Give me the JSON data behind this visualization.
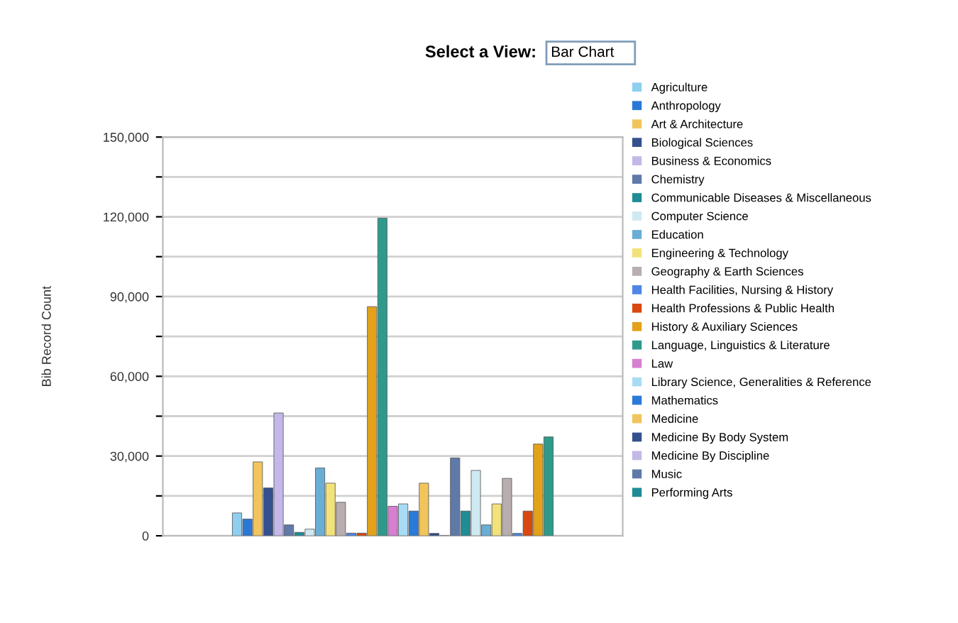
{
  "chart_data": {
    "type": "bar",
    "title": "Select a View:",
    "annotations": [
      "Bar Chart"
    ],
    "ylabel": "Bib Record Count",
    "categories": [
      null
    ],
    "series": [
      {
        "name": "Agriculture",
        "color": "#8ecff0",
        "values": [
          8600
        ]
      },
      {
        "name": "Anthropology",
        "color": "#2a78d6",
        "values": [
          6300
        ]
      },
      {
        "name": "Art & Architecture",
        "color": "#f2c55c",
        "values": [
          27800
        ]
      },
      {
        "name": "Biological Sciences",
        "color": "#35508f",
        "values": [
          18000
        ]
      },
      {
        "name": "Business & Economics",
        "color": "#c4b8e8",
        "values": [
          46200
        ]
      },
      {
        "name": "Chemistry",
        "color": "#5f79a8",
        "values": [
          4100
        ]
      },
      {
        "name": "Communicable Diseases & Miscellaneous",
        "color": "#1f8c96",
        "values": [
          1300
        ]
      },
      {
        "name": "Computer Science",
        "color": "#cfe9f2",
        "values": [
          2500
        ]
      },
      {
        "name": "Education",
        "color": "#6aaed6",
        "values": [
          25500
        ]
      },
      {
        "name": "Engineering & Technology",
        "color": "#f3e27a",
        "values": [
          19800
        ]
      },
      {
        "name": "Geography & Earth Sciences",
        "color": "#b8aeb0",
        "values": [
          12600
        ]
      },
      {
        "name": "Health Facilities, Nursing & History",
        "color": "#4f86e6",
        "values": [
          1000
        ]
      },
      {
        "name": "Health Professions & Public Health",
        "color": "#d9480f",
        "values": [
          1000
        ]
      },
      {
        "name": "History & Auxiliary Sciences",
        "color": "#e3a21a",
        "values": [
          86200
        ]
      },
      {
        "name": "Language, Linguistics & Literature",
        "color": "#2f9a8c",
        "values": [
          119500
        ]
      },
      {
        "name": "Law",
        "color": "#d77fd0",
        "values": [
          11100
        ]
      },
      {
        "name": "Library Science, Generalities & Reference",
        "color": "#a8dcf5",
        "values": [
          12000
        ]
      },
      {
        "name": "Mathematics",
        "color": "#2a7ad8",
        "values": [
          9300
        ]
      },
      {
        "name": "Medicine",
        "color": "#f2c55c",
        "values": [
          19800
        ]
      },
      {
        "name": "Medicine By Body System",
        "color": "#35508f",
        "values": [
          900
        ]
      },
      {
        "name": "Medicine By Discipline",
        "color": "#c4b8e8",
        "values": [
          null
        ]
      },
      {
        "name": "Music",
        "color": "#5f79a8",
        "values": [
          29300
        ]
      },
      {
        "name": "Performing Arts",
        "color": "#1f8c96",
        "values": [
          9300
        ]
      },
      {
        "color": "#cfe9f2",
        "values": [
          24600
        ]
      },
      {
        "color": "#6aaed6",
        "values": [
          4100
        ]
      },
      {
        "color": "#f3e27a",
        "values": [
          12000
        ]
      },
      {
        "color": "#b8aeb0",
        "values": [
          21600
        ]
      },
      {
        "color": "#4f86e6",
        "values": [
          900
        ]
      },
      {
        "color": "#d9480f",
        "values": [
          9300
        ]
      },
      {
        "color": "#e3a21a",
        "values": [
          34500
        ]
      },
      {
        "color": "#2f9a8c",
        "values": [
          37200
        ]
      }
    ],
    "ylim": [
      0,
      150000
    ],
    "yticks": [
      0,
      {
        "value": 15000,
        "label": null
      },
      {
        "value": 30000,
        "label": "30,000"
      },
      {
        "value": 45000,
        "label": null
      },
      {
        "value": 60000,
        "label": "60,000"
      },
      {
        "value": 75000,
        "label": null
      },
      {
        "value": 90000,
        "label": "90,000"
      },
      {
        "value": 105000,
        "label": null
      },
      {
        "value": 120000,
        "label": "120,000"
      },
      {
        "value": 135000,
        "label": null
      },
      {
        "value": 150000,
        "label": "150,000"
      }
    ],
    "grid": "y",
    "legend": "right"
  }
}
